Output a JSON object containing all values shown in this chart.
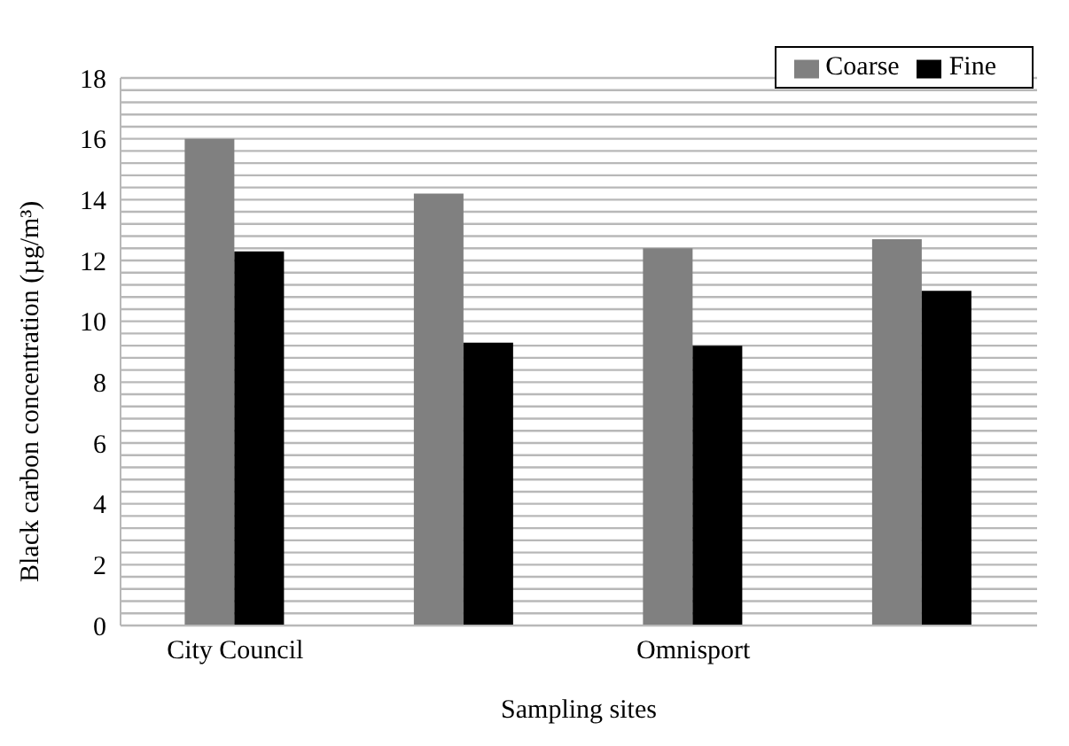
{
  "chart_data": {
    "type": "bar",
    "xlabel": "Sampling sites",
    "ylabel": "Black carbon concentration (µg/m³)",
    "categories": [
      "City Council",
      null,
      "Omnisport",
      null
    ],
    "series": [
      {
        "name": "Coarse",
        "color": "#808080",
        "values": [
          16.0,
          14.2,
          12.4,
          12.7
        ]
      },
      {
        "name": "Fine",
        "color": "#000000",
        "values": [
          12.3,
          9.3,
          9.2,
          11.0
        ]
      }
    ],
    "ylim": [
      0,
      18
    ],
    "yticks": [
      0,
      {
        "value": 0.4,
        "label": null
      },
      {
        "value": 0.8,
        "label": null
      },
      {
        "value": 1.2,
        "label": null
      },
      {
        "value": 1.6,
        "label": null
      },
      2,
      {
        "value": 2.4,
        "label": null
      },
      {
        "value": 2.8,
        "label": null
      },
      {
        "value": 3.2,
        "label": null
      },
      {
        "value": 3.6,
        "label": null
      },
      4,
      {
        "value": 4.4,
        "label": null
      },
      {
        "value": 4.8,
        "label": null
      },
      {
        "value": 5.2,
        "label": null
      },
      {
        "value": 5.6,
        "label": null
      },
      6,
      {
        "value": 6.4,
        "label": null
      },
      {
        "value": 6.8,
        "label": null
      },
      {
        "value": 7.2,
        "label": null
      },
      {
        "value": 7.6,
        "label": null
      },
      8,
      {
        "value": 8.4,
        "label": null
      },
      {
        "value": 8.8,
        "label": null
      },
      {
        "value": 9.2,
        "label": null
      },
      {
        "value": 9.6,
        "label": null
      },
      10,
      {
        "value": 10.4,
        "label": null
      },
      {
        "value": 10.8,
        "label": null
      },
      {
        "value": 11.2,
        "label": null
      },
      {
        "value": 11.6,
        "label": null
      },
      12,
      {
        "value": 12.4,
        "label": null
      },
      {
        "value": 12.8,
        "label": null
      },
      {
        "value": 13.2,
        "label": null
      },
      {
        "value": 13.6,
        "label": null
      },
      14,
      {
        "value": 14.4,
        "label": null
      },
      {
        "value": 14.8,
        "label": null
      },
      {
        "value": 15.2,
        "label": null
      },
      {
        "value": 15.6,
        "label": null
      },
      16,
      {
        "value": 16.4,
        "label": null
      },
      {
        "value": 16.8,
        "label": null
      },
      {
        "value": 17.2,
        "label": null
      },
      {
        "value": 17.6,
        "label": null
      },
      18
    ],
    "grid": "y",
    "legend": "top right"
  }
}
